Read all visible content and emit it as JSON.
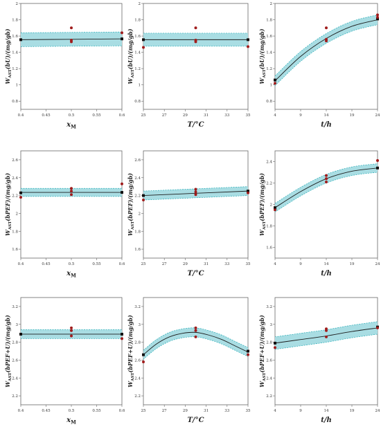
{
  "colors": {
    "band": "#a9dde3",
    "band_edge": "#2aaeb8",
    "fit": "#1c1c1c",
    "design": "#111111",
    "actual": "#a01c1c",
    "axis": "#666666"
  },
  "chart_data": [
    {
      "type": "line",
      "xlabel_main": "x",
      "xlabel_sub": "M",
      "ylabel_pre": "W",
      "ylabel_sub": "AST",
      "ylabel_post": "(bU)/(mg/gb)",
      "xlim": [
        0.4,
        0.6
      ],
      "ylim": [
        0.7,
        2.0
      ],
      "xticks": [
        0.4,
        0.45,
        0.5,
        0.55,
        0.6
      ],
      "xtick_labels": [
        "0.4",
        "0.45",
        "0.5",
        "0.55",
        "0.6"
      ],
      "yticks": [
        0.8,
        1.0,
        1.2,
        1.4,
        1.6,
        1.8,
        2.0
      ],
      "ytick_labels": [
        "0.8",
        "1",
        "1.2",
        "1.4",
        "1.6",
        "1.8",
        "2"
      ],
      "fit": {
        "x": [
          0.4,
          0.5,
          0.6
        ],
        "y": [
          1.555,
          1.56,
          1.565
        ]
      },
      "band_halfwidth": 0.085,
      "design_points": {
        "x": [
          0.4,
          0.6
        ],
        "y": [
          1.555,
          1.565
        ]
      },
      "actual_points": {
        "x": [
          0.5,
          0.5,
          0.5,
          0.6
        ],
        "y": [
          1.7,
          1.55,
          1.53,
          1.64
        ]
      }
    },
    {
      "type": "line",
      "xlabel_main": "T/°C",
      "xlabel_sub": "",
      "ylabel_pre": "W",
      "ylabel_sub": "AST",
      "ylabel_post": "(bU)/(mg/gb)",
      "xlim": [
        25,
        35
      ],
      "ylim": [
        0.7,
        2.0
      ],
      "xticks": [
        25,
        27,
        29,
        31,
        33,
        35
      ],
      "xtick_labels": [
        "25",
        "27",
        "29",
        "31",
        "33",
        "35"
      ],
      "yticks": [
        0.8,
        1.0,
        1.2,
        1.4,
        1.6,
        1.8,
        2.0
      ],
      "ytick_labels": [
        "0.8",
        "1",
        "1.2",
        "1.4",
        "1.6",
        "1.8",
        "2"
      ],
      "fit": {
        "x": [
          25,
          30,
          35
        ],
        "y": [
          1.555,
          1.555,
          1.555
        ]
      },
      "band_halfwidth": 0.08,
      "design_points": {
        "x": [
          25,
          35
        ],
        "y": [
          1.555,
          1.555
        ]
      },
      "actual_points": {
        "x": [
          25,
          30,
          30,
          30,
          35
        ],
        "y": [
          1.46,
          1.7,
          1.55,
          1.53,
          1.47
        ]
      }
    },
    {
      "type": "line",
      "xlabel_main": "t/h",
      "xlabel_sub": "",
      "ylabel_pre": "W",
      "ylabel_sub": "AST",
      "ylabel_post": "(bU)/(mg/gb)",
      "xlim": [
        4,
        24
      ],
      "ylim": [
        0.7,
        2.0
      ],
      "xticks": [
        4,
        9,
        14,
        19,
        24
      ],
      "xtick_labels": [
        "4",
        "9",
        "14",
        "19",
        "24"
      ],
      "yticks": [
        0.8,
        1.0,
        1.2,
        1.4,
        1.6,
        1.8,
        2.0
      ],
      "ytick_labels": [
        "0.8",
        "1",
        "1.2",
        "1.4",
        "1.6",
        "1.8",
        "2"
      ],
      "fit": {
        "x": [
          4,
          9,
          14,
          19,
          24
        ],
        "y": [
          1.05,
          1.35,
          1.57,
          1.72,
          1.8
        ]
      },
      "band_halfwidth": 0.06,
      "design_points": {
        "x": [
          4,
          24
        ],
        "y": [
          1.06,
          1.81
        ]
      },
      "actual_points": {
        "x": [
          4,
          14,
          14,
          14,
          24,
          24
        ],
        "y": [
          1.02,
          1.7,
          1.56,
          1.54,
          1.86,
          1.83
        ]
      }
    },
    {
      "type": "line",
      "xlabel_main": "x",
      "xlabel_sub": "M",
      "ylabel_pre": "W",
      "ylabel_sub": "AST",
      "ylabel_post": "(bPEF)/(mg/gb)",
      "xlim": [
        0.4,
        0.6
      ],
      "ylim": [
        1.5,
        2.7
      ],
      "xticks": [
        0.4,
        0.45,
        0.5,
        0.55,
        0.6
      ],
      "xtick_labels": [
        "0.4",
        "0.45",
        "0.5",
        "0.55",
        "0.6"
      ],
      "yticks": [
        1.6,
        1.8,
        2.0,
        2.2,
        2.4,
        2.6
      ],
      "ytick_labels": [
        "1.6",
        "1.8",
        "2",
        "2.2",
        "2.4",
        "2.6"
      ],
      "fit": {
        "x": [
          0.4,
          0.5,
          0.6
        ],
        "y": [
          2.235,
          2.235,
          2.235
        ]
      },
      "band_halfwidth": 0.045,
      "design_points": {
        "x": [
          0.4,
          0.6
        ],
        "y": [
          2.23,
          2.235
        ]
      },
      "actual_points": {
        "x": [
          0.4,
          0.5,
          0.5,
          0.5,
          0.6
        ],
        "y": [
          2.18,
          2.28,
          2.25,
          2.21,
          2.33
        ]
      }
    },
    {
      "type": "line",
      "xlabel_main": "T/°C",
      "xlabel_sub": "",
      "ylabel_pre": "W",
      "ylabel_sub": "AST",
      "ylabel_post": "(bPEF)/(mg/gb)",
      "xlim": [
        25,
        35
      ],
      "ylim": [
        1.5,
        2.7
      ],
      "xticks": [
        25,
        27,
        29,
        31,
        33,
        35
      ],
      "xtick_labels": [
        "25",
        "27",
        "29",
        "31",
        "33",
        "35"
      ],
      "yticks": [
        1.6,
        1.8,
        2.0,
        2.2,
        2.4,
        2.6
      ],
      "ytick_labels": [
        "1.6",
        "1.8",
        "2",
        "2.2",
        "2.4",
        "2.6"
      ],
      "fit": {
        "x": [
          25,
          30,
          35
        ],
        "y": [
          2.2,
          2.225,
          2.25
        ]
      },
      "band_halfwidth": 0.05,
      "design_points": {
        "x": [
          25,
          35
        ],
        "y": [
          2.2,
          2.25
        ]
      },
      "actual_points": {
        "x": [
          25,
          30,
          30,
          30,
          35
        ],
        "y": [
          2.15,
          2.27,
          2.24,
          2.21,
          2.23
        ]
      }
    },
    {
      "type": "line",
      "xlabel_main": "t/h",
      "xlabel_sub": "",
      "ylabel_pre": "W",
      "ylabel_sub": "AST",
      "ylabel_post": "(bPEF)/(mg/gb)",
      "xlim": [
        4,
        24
      ],
      "ylim": [
        1.5,
        2.5
      ],
      "xticks": [
        4,
        9,
        14,
        19,
        24
      ],
      "xtick_labels": [
        "4",
        "9",
        "14",
        "19",
        "24"
      ],
      "yticks": [
        1.6,
        1.8,
        2.0,
        2.2,
        2.4
      ],
      "ytick_labels": [
        "1.6",
        "1.8",
        "2",
        "2.2",
        "2.4"
      ],
      "fit": {
        "x": [
          4,
          9,
          14,
          19,
          24
        ],
        "y": [
          1.97,
          2.12,
          2.24,
          2.31,
          2.34
        ]
      },
      "band_halfwidth": 0.04,
      "design_points": {
        "x": [
          4,
          24
        ],
        "y": [
          1.97,
          2.34
        ]
      },
      "actual_points": {
        "x": [
          4,
          14,
          14,
          14,
          24
        ],
        "y": [
          1.95,
          2.27,
          2.24,
          2.21,
          2.41
        ]
      }
    },
    {
      "type": "line",
      "xlabel_main": "x",
      "xlabel_sub": "M",
      "ylabel_pre": "W",
      "ylabel_sub": "AST",
      "ylabel_post": "(bPEF+U)/(mg/gb)",
      "xlim": [
        0.4,
        0.6
      ],
      "ylim": [
        2.1,
        3.3
      ],
      "xticks": [
        0.4,
        0.45,
        0.5,
        0.55,
        0.6
      ],
      "xtick_labels": [
        "0.4",
        "0.45",
        "0.5",
        "0.55",
        "0.6"
      ],
      "yticks": [
        2.2,
        2.4,
        2.6,
        2.8,
        3.0,
        3.2
      ],
      "ytick_labels": [
        "2.2",
        "2.4",
        "2.6",
        "2.8",
        "3",
        "3.2"
      ],
      "fit": {
        "x": [
          0.4,
          0.5,
          0.6
        ],
        "y": [
          2.89,
          2.89,
          2.89
        ]
      },
      "band_halfwidth": 0.05,
      "design_points": {
        "x": [
          0.4,
          0.6
        ],
        "y": [
          2.89,
          2.89
        ]
      },
      "actual_points": {
        "x": [
          0.5,
          0.5,
          0.5,
          0.6
        ],
        "y": [
          2.96,
          2.93,
          2.87,
          2.84
        ]
      }
    },
    {
      "type": "line",
      "xlabel_main": "T/°C",
      "xlabel_sub": "",
      "ylabel_pre": "W",
      "ylabel_sub": "AST",
      "ylabel_post": "(bPEF+U)/(mg/gb)",
      "xlim": [
        25,
        35
      ],
      "ylim": [
        2.1,
        3.3
      ],
      "xticks": [
        25,
        27,
        29,
        31,
        33,
        35
      ],
      "xtick_labels": [
        "25",
        "27",
        "29",
        "31",
        "33",
        "35"
      ],
      "yticks": [
        2.2,
        2.4,
        2.6,
        2.8,
        3.0,
        3.2
      ],
      "ytick_labels": [
        "2.2",
        "2.4",
        "2.6",
        "2.8",
        "3",
        "3.2"
      ],
      "fit": {
        "x": [
          25,
          26.25,
          27.5,
          28.75,
          30,
          31.25,
          32.5,
          33.75,
          35
        ],
        "y": [
          2.66,
          2.78,
          2.86,
          2.9,
          2.91,
          2.88,
          2.83,
          2.76,
          2.69
        ]
      },
      "band_halfwidth": 0.05,
      "design_points": {
        "x": [
          25,
          35
        ],
        "y": [
          2.66,
          2.7
        ]
      },
      "actual_points": {
        "x": [
          25,
          30,
          30,
          30,
          35
        ],
        "y": [
          2.58,
          2.96,
          2.93,
          2.86,
          2.66
        ]
      }
    },
    {
      "type": "line",
      "xlabel_main": "t/h",
      "xlabel_sub": "",
      "ylabel_pre": "W",
      "ylabel_sub": "AST",
      "ylabel_post": "(bPEF+U)/(mg/gb)",
      "xlim": [
        4,
        24
      ],
      "ylim": [
        2.1,
        3.3
      ],
      "xticks": [
        4,
        9,
        14,
        19,
        24
      ],
      "xtick_labels": [
        "4",
        "9",
        "14",
        "19",
        "24"
      ],
      "yticks": [
        2.2,
        2.4,
        2.6,
        2.8,
        3.0,
        3.2
      ],
      "ytick_labels": [
        "2.2",
        "2.4",
        "2.6",
        "2.8",
        "3",
        "3.2"
      ],
      "fit": {
        "x": [
          4,
          9,
          14,
          19,
          24
        ],
        "y": [
          2.79,
          2.83,
          2.87,
          2.92,
          2.96
        ]
      },
      "band_halfwidth": 0.07,
      "design_points": {
        "x": [
          4,
          24
        ],
        "y": [
          2.79,
          2.97
        ]
      },
      "actual_points": {
        "x": [
          4,
          14,
          14,
          14,
          24
        ],
        "y": [
          2.74,
          2.95,
          2.93,
          2.86,
          2.96
        ]
      }
    }
  ]
}
